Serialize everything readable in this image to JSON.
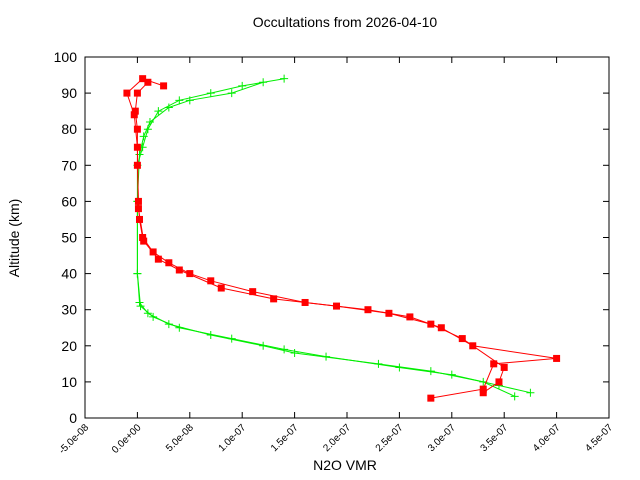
{
  "chart_data": {
    "type": "scatter-line",
    "title": "Occultations from 2026-04-10",
    "xlabel": "N2O VMR",
    "ylabel": "Altitude (km)",
    "xlim": [
      -5e-08,
      4.5e-07
    ],
    "ylim": [
      0,
      100
    ],
    "xticks": [
      {
        "value": -5e-08,
        "label": "-5.0e-08"
      },
      {
        "value": 0,
        "label": "0.0e+00"
      },
      {
        "value": 5e-08,
        "label": "5.0e-08"
      },
      {
        "value": 1e-07,
        "label": "1.0e-07"
      },
      {
        "value": 1.5e-07,
        "label": "1.5e-07"
      },
      {
        "value": 2e-07,
        "label": "2.0e-07"
      },
      {
        "value": 2.5e-07,
        "label": "2.5e-07"
      },
      {
        "value": 3e-07,
        "label": "3.0e-07"
      },
      {
        "value": 3.5e-07,
        "label": "3.5e-07"
      },
      {
        "value": 4e-07,
        "label": "4.0e-07"
      },
      {
        "value": 4.5e-07,
        "label": "4.5e-07"
      }
    ],
    "yticks": [
      0,
      10,
      20,
      30,
      40,
      50,
      60,
      70,
      80,
      90,
      100
    ],
    "series": [
      {
        "color": "#00ee00",
        "marker": "plus",
        "x": [
          3.6e-07,
          3.3e-07,
          2.8e-07,
          2.3e-07,
          1.5e-07,
          1.2e-07,
          7e-08,
          3e-08,
          1e-08,
          2e-09,
          0,
          0,
          0,
          5e-09,
          1e-08,
          2e-08,
          4e-08,
          7e-08,
          1e-07,
          1.4e-07
        ],
        "values": [
          6,
          10,
          13,
          15,
          18,
          20,
          23,
          26,
          29,
          32,
          40,
          60,
          70,
          75,
          80,
          85,
          88,
          90,
          92,
          94
        ]
      },
      {
        "color": "#00ee00",
        "marker": "plus",
        "x": [
          3.75e-07,
          3.45e-07,
          3e-07,
          2.5e-07,
          1.8e-07,
          1.4e-07,
          9e-08,
          4e-08,
          1.5e-08,
          3e-09,
          0,
          0,
          2e-09,
          6e-09,
          1.2e-08,
          3e-08,
          5e-08,
          9e-08,
          1.2e-07
        ],
        "values": [
          7,
          9,
          12,
          14,
          17,
          19,
          22,
          25,
          28,
          31,
          40,
          60,
          73,
          78,
          82,
          86,
          88,
          90,
          93
        ]
      },
      {
        "color": "#ff0000",
        "marker": "square",
        "x": [
          2.8e-07,
          3.3e-07,
          3.4e-07,
          4e-07,
          3.2e-07,
          2.9e-07,
          2.6e-07,
          2.2e-07,
          1.6e-07,
          1.1e-07,
          7e-08,
          5e-08,
          3e-08,
          1.5e-08,
          5e-09,
          2e-09,
          1e-09,
          0,
          0,
          -2e-09,
          0,
          1e-08
        ],
        "values": [
          5.5,
          8,
          15,
          16.5,
          20,
          25,
          28,
          30,
          32,
          35,
          38,
          40,
          43,
          46,
          50,
          55,
          60,
          70,
          80,
          85,
          90,
          93
        ]
      },
      {
        "color": "#ff0000",
        "marker": "square",
        "x": [
          3.3e-07,
          3.45e-07,
          3.5e-07,
          3.1e-07,
          2.8e-07,
          2.4e-07,
          1.9e-07,
          1.3e-07,
          8e-08,
          4e-08,
          2e-08,
          6e-09,
          1e-09,
          0,
          -3e-09,
          -1e-08,
          5e-09,
          2.5e-08
        ],
        "values": [
          7,
          10,
          14,
          22,
          26,
          29,
          31,
          33,
          36,
          41,
          44,
          49,
          58,
          75,
          84,
          90,
          94,
          92
        ]
      }
    ]
  }
}
